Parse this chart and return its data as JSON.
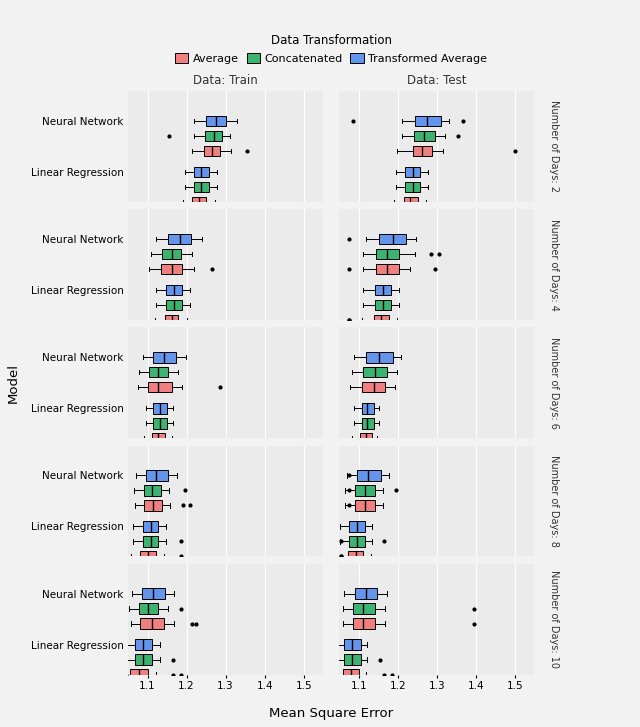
{
  "colors": {
    "Average": "#F08080",
    "Concatenated": "#3CB371",
    "Transformed Average": "#6495ED"
  },
  "legend_title": "Data Transformation",
  "col_labels": [
    "Data: Train",
    "Data: Test"
  ],
  "row_labels": [
    "Number of Days: 2",
    "Number of Days: 4",
    "Number of Days: 6",
    "Number of Days: 8",
    "Number of Days: 10"
  ],
  "model_labels": [
    "Neural Network",
    "Linear Regression"
  ],
  "xlabel": "Mean Square Error",
  "ylabel": "Model",
  "xlim": [
    1.05,
    1.55
  ],
  "xticks": [
    1.1,
    1.2,
    1.3,
    1.4,
    1.5
  ],
  "panel_bg": "#EBEBEB",
  "fig_bg": "#F2F2F2",
  "strip_bg": "#D3D3D3",
  "header_bg": "#D3D3D3",
  "boxplot_data": {
    "train": {
      "days2": {
        "Neural Network": {
          "Average": {
            "q1": 1.245,
            "med": 1.265,
            "q3": 1.285,
            "whislo": 1.215,
            "whishi": 1.315,
            "fliers": [
              1.355
            ]
          },
          "Concatenated": {
            "q1": 1.248,
            "med": 1.27,
            "q3": 1.292,
            "whislo": 1.218,
            "whishi": 1.312,
            "fliers": [
              1.155
            ]
          },
          "Transformed Average": {
            "q1": 1.25,
            "med": 1.275,
            "q3": 1.3,
            "whislo": 1.22,
            "whishi": 1.33,
            "fliers": []
          }
        },
        "Linear Regression": {
          "Average": {
            "q1": 1.215,
            "med": 1.232,
            "q3": 1.249,
            "whislo": 1.192,
            "whishi": 1.272,
            "fliers": []
          },
          "Concatenated": {
            "q1": 1.218,
            "med": 1.238,
            "q3": 1.258,
            "whislo": 1.195,
            "whishi": 1.278,
            "fliers": []
          },
          "Transformed Average": {
            "q1": 1.218,
            "med": 1.238,
            "q3": 1.258,
            "whislo": 1.195,
            "whishi": 1.278,
            "fliers": []
          }
        }
      },
      "days4": {
        "Neural Network": {
          "Average": {
            "q1": 1.135,
            "med": 1.162,
            "q3": 1.189,
            "whislo": 1.105,
            "whishi": 1.218,
            "fliers": [
              1.265
            ]
          },
          "Concatenated": {
            "q1": 1.138,
            "med": 1.162,
            "q3": 1.186,
            "whislo": 1.108,
            "whishi": 1.215,
            "fliers": []
          },
          "Transformed Average": {
            "q1": 1.152,
            "med": 1.182,
            "q3": 1.212,
            "whislo": 1.122,
            "whishi": 1.24,
            "fliers": []
          }
        },
        "Linear Regression": {
          "Average": {
            "q1": 1.145,
            "med": 1.162,
            "q3": 1.179,
            "whislo": 1.118,
            "whishi": 1.2,
            "fliers": []
          },
          "Concatenated": {
            "q1": 1.148,
            "med": 1.168,
            "q3": 1.188,
            "whislo": 1.122,
            "whishi": 1.208,
            "fliers": []
          },
          "Transformed Average": {
            "q1": 1.148,
            "med": 1.168,
            "q3": 1.188,
            "whislo": 1.122,
            "whishi": 1.208,
            "fliers": []
          }
        }
      },
      "days6": {
        "Neural Network": {
          "Average": {
            "q1": 1.1,
            "med": 1.128,
            "q3": 1.162,
            "whislo": 1.075,
            "whishi": 1.188,
            "fliers": [
              1.285
            ]
          },
          "Concatenated": {
            "q1": 1.105,
            "med": 1.128,
            "q3": 1.152,
            "whislo": 1.078,
            "whishi": 1.178,
            "fliers": []
          },
          "Transformed Average": {
            "q1": 1.115,
            "med": 1.142,
            "q3": 1.172,
            "whislo": 1.088,
            "whishi": 1.198,
            "fliers": []
          }
        },
        "Linear Regression": {
          "Average": {
            "q1": 1.112,
            "med": 1.128,
            "q3": 1.144,
            "whislo": 1.092,
            "whishi": 1.162,
            "fliers": []
          },
          "Concatenated": {
            "q1": 1.115,
            "med": 1.132,
            "q3": 1.149,
            "whislo": 1.095,
            "whishi": 1.165,
            "fliers": []
          },
          "Transformed Average": {
            "q1": 1.115,
            "med": 1.132,
            "q3": 1.149,
            "whislo": 1.095,
            "whishi": 1.165,
            "fliers": []
          }
        }
      },
      "days8": {
        "Neural Network": {
          "Average": {
            "q1": 1.092,
            "med": 1.115,
            "q3": 1.138,
            "whislo": 1.068,
            "whishi": 1.158,
            "fliers": [
              1.192,
              1.21
            ]
          },
          "Concatenated": {
            "q1": 1.09,
            "med": 1.112,
            "q3": 1.135,
            "whislo": 1.065,
            "whishi": 1.155,
            "fliers": [
              1.195
            ]
          },
          "Transformed Average": {
            "q1": 1.095,
            "med": 1.122,
            "q3": 1.152,
            "whislo": 1.07,
            "whishi": 1.175,
            "fliers": []
          }
        },
        "Linear Regression": {
          "Average": {
            "q1": 1.082,
            "med": 1.102,
            "q3": 1.122,
            "whislo": 1.058,
            "whishi": 1.142,
            "fliers": [
              1.185
            ]
          },
          "Concatenated": {
            "q1": 1.088,
            "med": 1.108,
            "q3": 1.128,
            "whislo": 1.062,
            "whishi": 1.148,
            "fliers": [
              1.185
            ]
          },
          "Transformed Average": {
            "q1": 1.088,
            "med": 1.108,
            "q3": 1.128,
            "whislo": 1.062,
            "whishi": 1.148,
            "fliers": []
          }
        }
      },
      "days10": {
        "Neural Network": {
          "Average": {
            "q1": 1.082,
            "med": 1.112,
            "q3": 1.142,
            "whislo": 1.058,
            "whishi": 1.168,
            "fliers": [
              1.215,
              1.225
            ]
          },
          "Concatenated": {
            "q1": 1.078,
            "med": 1.102,
            "q3": 1.128,
            "whislo": 1.052,
            "whishi": 1.152,
            "fliers": [
              1.185
            ]
          },
          "Transformed Average": {
            "q1": 1.085,
            "med": 1.115,
            "q3": 1.145,
            "whislo": 1.06,
            "whishi": 1.168,
            "fliers": []
          }
        },
        "Linear Regression": {
          "Average": {
            "q1": 1.055,
            "med": 1.078,
            "q3": 1.102,
            "whislo": 1.028,
            "whishi": 1.122,
            "fliers": [
              1.045,
              1.165,
              1.185
            ]
          },
          "Concatenated": {
            "q1": 1.068,
            "med": 1.088,
            "q3": 1.112,
            "whislo": 1.042,
            "whishi": 1.132,
            "fliers": [
              1.165
            ]
          },
          "Transformed Average": {
            "q1": 1.068,
            "med": 1.088,
            "q3": 1.112,
            "whislo": 1.042,
            "whishi": 1.132,
            "fliers": []
          }
        }
      }
    },
    "test": {
      "days2": {
        "Neural Network": {
          "Average": {
            "q1": 1.238,
            "med": 1.262,
            "q3": 1.288,
            "whislo": 1.198,
            "whishi": 1.315,
            "fliers": [
              1.5
            ]
          },
          "Concatenated": {
            "q1": 1.242,
            "med": 1.268,
            "q3": 1.295,
            "whislo": 1.21,
            "whishi": 1.322,
            "fliers": [
              1.355
            ]
          },
          "Transformed Average": {
            "q1": 1.245,
            "med": 1.275,
            "q3": 1.31,
            "whislo": 1.21,
            "whishi": 1.332,
            "fliers": [
              1.085,
              1.368
            ]
          }
        },
        "Linear Regression": {
          "Average": {
            "q1": 1.215,
            "med": 1.232,
            "q3": 1.252,
            "whislo": 1.19,
            "whishi": 1.272,
            "fliers": []
          },
          "Concatenated": {
            "q1": 1.218,
            "med": 1.238,
            "q3": 1.258,
            "whislo": 1.195,
            "whishi": 1.278,
            "fliers": []
          },
          "Transformed Average": {
            "q1": 1.218,
            "med": 1.238,
            "q3": 1.258,
            "whislo": 1.195,
            "whishi": 1.278,
            "fliers": []
          }
        }
      },
      "days4": {
        "Neural Network": {
          "Average": {
            "q1": 1.145,
            "med": 1.172,
            "q3": 1.202,
            "whislo": 1.112,
            "whishi": 1.232,
            "fliers": [
              1.075,
              1.295
            ]
          },
          "Concatenated": {
            "q1": 1.145,
            "med": 1.172,
            "q3": 1.202,
            "whislo": 1.112,
            "whishi": 1.245,
            "fliers": [
              1.285,
              1.305
            ]
          },
          "Transformed Average": {
            "q1": 1.152,
            "med": 1.188,
            "q3": 1.222,
            "whislo": 1.118,
            "whishi": 1.248,
            "fliers": [
              1.075
            ]
          }
        },
        "Linear Regression": {
          "Average": {
            "q1": 1.138,
            "med": 1.158,
            "q3": 1.178,
            "whislo": 1.108,
            "whishi": 1.198,
            "fliers": [
              1.075,
              1.075
            ]
          },
          "Concatenated": {
            "q1": 1.142,
            "med": 1.162,
            "q3": 1.182,
            "whislo": 1.112,
            "whishi": 1.202,
            "fliers": []
          },
          "Transformed Average": {
            "q1": 1.142,
            "med": 1.162,
            "q3": 1.182,
            "whislo": 1.112,
            "whishi": 1.202,
            "fliers": []
          }
        }
      },
      "days6": {
        "Neural Network": {
          "Average": {
            "q1": 1.108,
            "med": 1.138,
            "q3": 1.168,
            "whislo": 1.078,
            "whishi": 1.192,
            "fliers": []
          },
          "Concatenated": {
            "q1": 1.112,
            "med": 1.142,
            "q3": 1.172,
            "whislo": 1.082,
            "whishi": 1.198,
            "fliers": []
          },
          "Transformed Average": {
            "q1": 1.118,
            "med": 1.152,
            "q3": 1.188,
            "whislo": 1.088,
            "whishi": 1.208,
            "fliers": []
          }
        },
        "Linear Regression": {
          "Average": {
            "q1": 1.102,
            "med": 1.118,
            "q3": 1.134,
            "whislo": 1.082,
            "whishi": 1.148,
            "fliers": []
          },
          "Concatenated": {
            "q1": 1.108,
            "med": 1.122,
            "q3": 1.138,
            "whislo": 1.088,
            "whishi": 1.152,
            "fliers": []
          },
          "Transformed Average": {
            "q1": 1.108,
            "med": 1.122,
            "q3": 1.138,
            "whislo": 1.088,
            "whishi": 1.152,
            "fliers": []
          }
        }
      },
      "days8": {
        "Neural Network": {
          "Average": {
            "q1": 1.09,
            "med": 1.115,
            "q3": 1.142,
            "whislo": 1.065,
            "whishi": 1.162,
            "fliers": [
              1.075
            ]
          },
          "Concatenated": {
            "q1": 1.09,
            "med": 1.115,
            "q3": 1.142,
            "whislo": 1.065,
            "whishi": 1.162,
            "fliers": [
              1.075,
              1.195
            ]
          },
          "Transformed Average": {
            "q1": 1.095,
            "med": 1.125,
            "q3": 1.158,
            "whislo": 1.07,
            "whishi": 1.178,
            "fliers": [
              1.075
            ]
          }
        },
        "Linear Regression": {
          "Average": {
            "q1": 1.072,
            "med": 1.092,
            "q3": 1.112,
            "whislo": 1.048,
            "whishi": 1.132,
            "fliers": [
              1.055,
              1.055
            ]
          },
          "Concatenated": {
            "q1": 1.075,
            "med": 1.095,
            "q3": 1.115,
            "whislo": 1.052,
            "whishi": 1.135,
            "fliers": [
              1.055,
              1.165
            ]
          },
          "Transformed Average": {
            "q1": 1.075,
            "med": 1.095,
            "q3": 1.115,
            "whislo": 1.052,
            "whishi": 1.135,
            "fliers": []
          }
        }
      },
      "days10": {
        "Neural Network": {
          "Average": {
            "q1": 1.085,
            "med": 1.112,
            "q3": 1.142,
            "whislo": 1.06,
            "whishi": 1.168,
            "fliers": [
              1.395
            ]
          },
          "Concatenated": {
            "q1": 1.085,
            "med": 1.112,
            "q3": 1.142,
            "whislo": 1.06,
            "whishi": 1.168,
            "fliers": [
              1.395
            ]
          },
          "Transformed Average": {
            "q1": 1.09,
            "med": 1.118,
            "q3": 1.148,
            "whislo": 1.062,
            "whishi": 1.172,
            "fliers": []
          }
        },
        "Linear Regression": {
          "Average": {
            "q1": 1.06,
            "med": 1.08,
            "q3": 1.1,
            "whislo": 1.035,
            "whishi": 1.118,
            "fliers": [
              1.185,
              1.165
            ]
          },
          "Concatenated": {
            "q1": 1.062,
            "med": 1.082,
            "q3": 1.105,
            "whislo": 1.038,
            "whishi": 1.122,
            "fliers": [
              1.155
            ]
          },
          "Transformed Average": {
            "q1": 1.062,
            "med": 1.082,
            "q3": 1.105,
            "whislo": 1.038,
            "whishi": 1.122,
            "fliers": []
          }
        }
      }
    }
  }
}
